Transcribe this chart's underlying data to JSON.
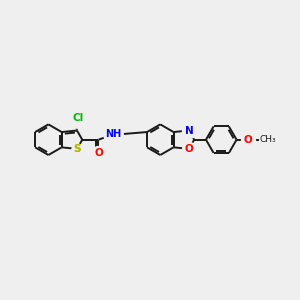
{
  "bg_color": "#efefef",
  "bond_color": "#1a1a1a",
  "atom_colors": {
    "S": "#b8b800",
    "O": "#ff0000",
    "N": "#0000ee",
    "Cl": "#00bb00",
    "H": "#555555"
  },
  "lw": 1.4
}
